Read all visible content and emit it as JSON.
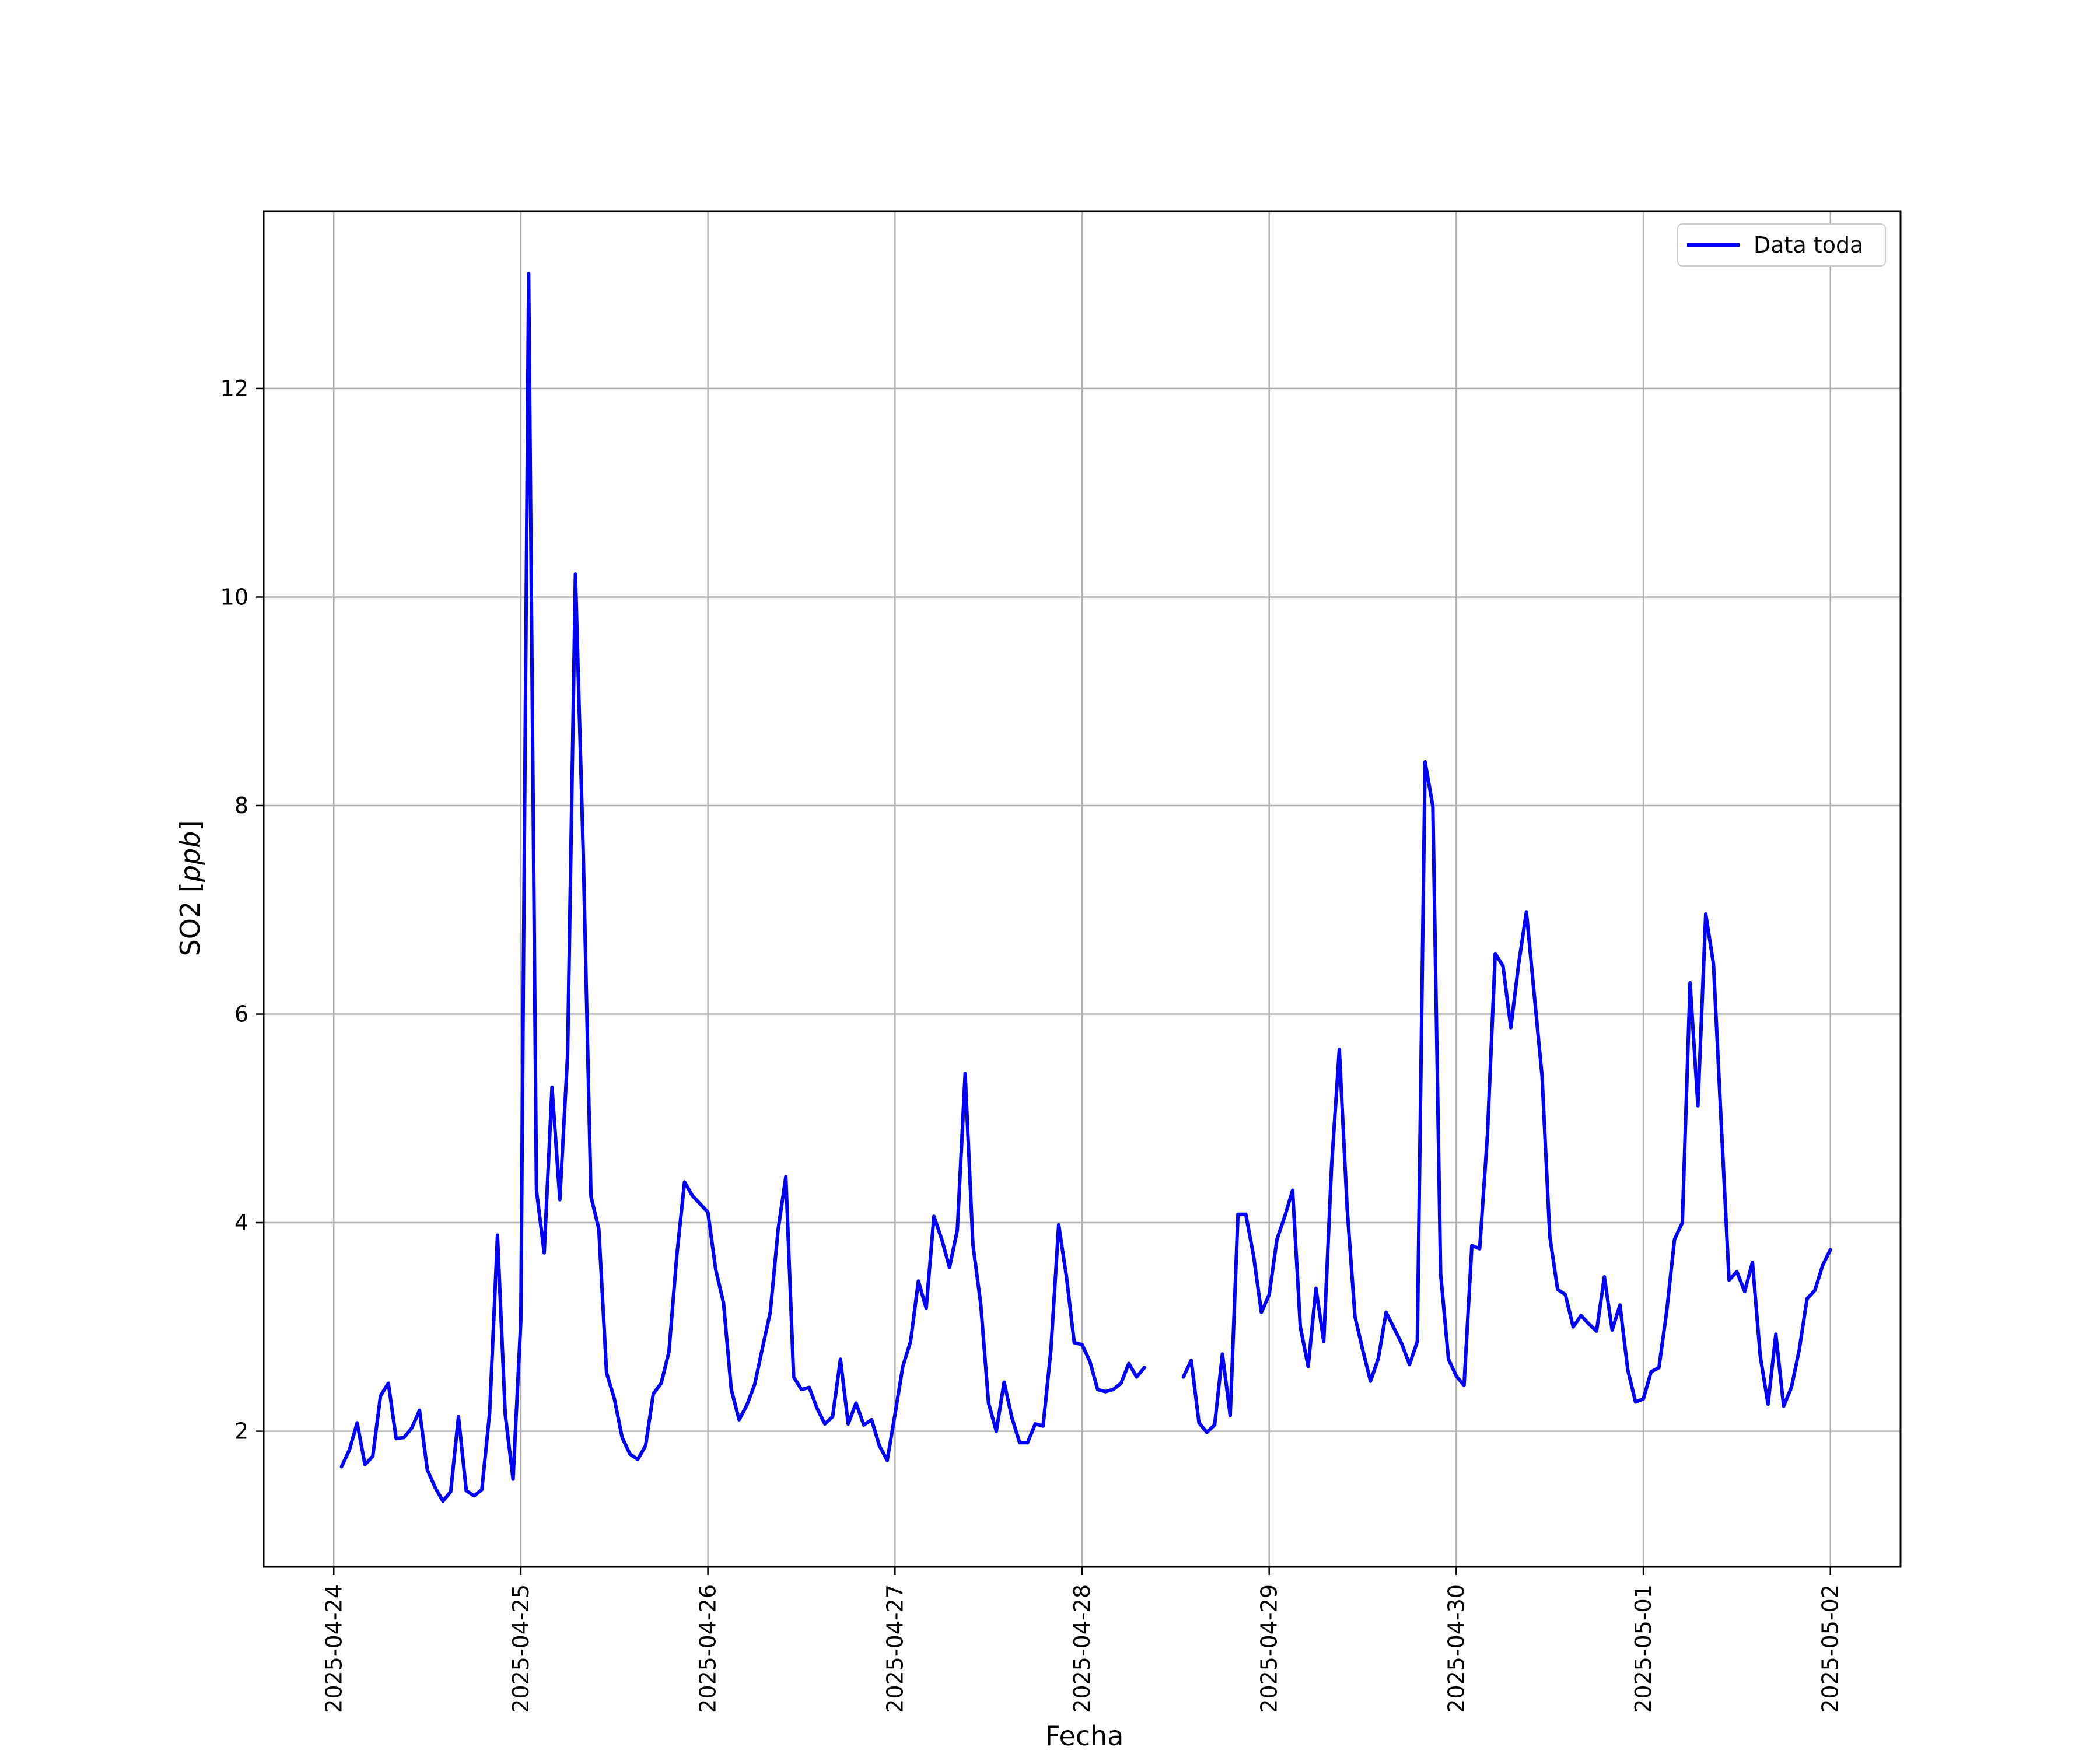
{
  "chart_data": {
    "type": "line",
    "xlabel": "Fecha",
    "ylabel_prefix": "SO2 [",
    "ylabel_unit": "ppb",
    "ylabel_suffix": "]",
    "ylim": [
      0.7,
      13.7
    ],
    "y_ticks": [
      2,
      4,
      6,
      8,
      10,
      12
    ],
    "x_ticks": [
      "2025-04-24",
      "2025-04-25",
      "2025-04-26",
      "2025-04-27",
      "2025-04-28",
      "2025-04-29",
      "2025-04-30",
      "2025-05-01",
      "2025-05-02"
    ],
    "xlim": [
      "2025-04-23T15:00",
      "2025-05-02T09:00"
    ],
    "grid": true,
    "legend_position": "upper right",
    "colors": {
      "series": "#0000ff",
      "grid": "#b0b0b0"
    },
    "series": [
      {
        "name": "Data toda",
        "x": [
          "2025-04-24T01:00",
          "2025-04-24T02:00",
          "2025-04-24T03:00",
          "2025-04-24T04:00",
          "2025-04-24T05:00",
          "2025-04-24T06:00",
          "2025-04-24T07:00",
          "2025-04-24T08:00",
          "2025-04-24T09:00",
          "2025-04-24T10:00",
          "2025-04-24T11:00",
          "2025-04-24T12:00",
          "2025-04-24T13:00",
          "2025-04-24T14:00",
          "2025-04-24T15:00",
          "2025-04-24T16:00",
          "2025-04-24T17:00",
          "2025-04-24T18:00",
          "2025-04-24T19:00",
          "2025-04-24T20:00",
          "2025-04-24T21:00",
          "2025-04-24T22:00",
          "2025-04-24T23:00",
          "2025-04-25T00:00",
          "2025-04-25T01:00",
          "2025-04-25T02:00",
          "2025-04-25T03:00",
          "2025-04-25T04:00",
          "2025-04-25T05:00",
          "2025-04-25T06:00",
          "2025-04-25T07:00",
          "2025-04-25T08:00",
          "2025-04-25T09:00",
          "2025-04-25T10:00",
          "2025-04-25T11:00",
          "2025-04-25T12:00",
          "2025-04-25T13:00",
          "2025-04-25T14:00",
          "2025-04-25T15:00",
          "2025-04-25T16:00",
          "2025-04-25T17:00",
          "2025-04-25T18:00",
          "2025-04-25T19:00",
          "2025-04-25T20:00",
          "2025-04-25T21:00",
          "2025-04-25T22:00",
          "2025-04-25T23:00",
          "2025-04-26T00:00",
          "2025-04-26T01:00",
          "2025-04-26T02:00",
          "2025-04-26T03:00",
          "2025-04-26T04:00",
          "2025-04-26T05:00",
          "2025-04-26T06:00",
          "2025-04-26T07:00",
          "2025-04-26T08:00",
          "2025-04-26T09:00",
          "2025-04-26T10:00",
          "2025-04-26T11:00",
          "2025-04-26T12:00",
          "2025-04-26T13:00",
          "2025-04-26T14:00",
          "2025-04-26T15:00",
          "2025-04-26T16:00",
          "2025-04-26T17:00",
          "2025-04-26T18:00",
          "2025-04-26T19:00",
          "2025-04-26T20:00",
          "2025-04-26T21:00",
          "2025-04-26T22:00",
          "2025-04-26T23:00",
          "2025-04-27T00:00",
          "2025-04-27T01:00",
          "2025-04-27T02:00",
          "2025-04-27T03:00",
          "2025-04-27T04:00",
          "2025-04-27T05:00",
          "2025-04-27T06:00",
          "2025-04-27T07:00",
          "2025-04-27T08:00",
          "2025-04-27T09:00",
          "2025-04-27T10:00",
          "2025-04-27T11:00",
          "2025-04-27T12:00",
          "2025-04-27T13:00",
          "2025-04-27T14:00",
          "2025-04-27T15:00",
          "2025-04-27T16:00",
          "2025-04-27T17:00",
          "2025-04-27T18:00",
          "2025-04-27T19:00",
          "2025-04-27T20:00",
          "2025-04-27T21:00",
          "2025-04-27T22:00",
          "2025-04-27T23:00",
          "2025-04-28T00:00",
          "2025-04-28T01:00",
          "2025-04-28T02:00",
          "2025-04-28T03:00",
          "2025-04-28T04:00",
          "2025-04-28T05:00",
          "2025-04-28T06:00",
          "2025-04-28T07:00",
          "2025-04-28T08:00",
          null,
          "2025-04-28T13:00",
          "2025-04-28T14:00",
          "2025-04-28T15:00",
          "2025-04-28T16:00",
          "2025-04-28T17:00",
          "2025-04-28T18:00",
          "2025-04-28T19:00",
          "2025-04-28T20:00",
          "2025-04-28T21:00",
          "2025-04-28T22:00",
          "2025-04-28T23:00",
          "2025-04-29T00:00",
          "2025-04-29T01:00",
          "2025-04-29T02:00",
          "2025-04-29T03:00",
          "2025-04-29T04:00",
          "2025-04-29T05:00",
          "2025-04-29T06:00",
          "2025-04-29T07:00",
          "2025-04-29T08:00",
          "2025-04-29T09:00",
          "2025-04-29T10:00",
          "2025-04-29T11:00",
          "2025-04-29T12:00",
          "2025-04-29T13:00",
          "2025-04-29T14:00",
          "2025-04-29T15:00",
          "2025-04-29T16:00",
          "2025-04-29T17:00",
          "2025-04-29T18:00",
          "2025-04-29T19:00",
          "2025-04-29T20:00",
          "2025-04-29T21:00",
          "2025-04-29T22:00",
          "2025-04-29T23:00",
          "2025-04-30T00:00",
          "2025-04-30T01:00",
          "2025-04-30T02:00",
          "2025-04-30T03:00",
          "2025-04-30T04:00",
          "2025-04-30T05:00",
          "2025-04-30T06:00",
          "2025-04-30T07:00",
          "2025-04-30T08:00",
          "2025-04-30T09:00",
          "2025-04-30T10:00",
          "2025-04-30T11:00",
          "2025-04-30T12:00",
          "2025-04-30T13:00",
          "2025-04-30T14:00",
          "2025-04-30T15:00",
          "2025-04-30T16:00",
          "2025-04-30T17:00",
          "2025-04-30T18:00",
          "2025-04-30T19:00",
          "2025-04-30T20:00",
          "2025-04-30T21:00",
          "2025-04-30T22:00",
          "2025-04-30T23:00",
          "2025-05-01T00:00",
          "2025-05-01T01:00",
          "2025-05-01T02:00",
          "2025-05-01T03:00",
          "2025-05-01T04:00",
          "2025-05-01T05:00",
          "2025-05-01T06:00",
          "2025-05-01T07:00",
          "2025-05-01T08:00",
          "2025-05-01T09:00",
          "2025-05-01T10:00",
          "2025-05-01T11:00",
          "2025-05-01T12:00",
          "2025-05-01T13:00",
          "2025-05-01T14:00",
          "2025-05-01T15:00",
          "2025-05-01T16:00",
          "2025-05-01T17:00",
          "2025-05-01T18:00",
          "2025-05-01T19:00",
          "2025-05-01T20:00",
          "2025-05-01T21:00",
          "2025-05-01T22:00",
          "2025-05-01T23:00",
          "2025-05-02T00:00"
        ],
        "values": [
          1.66,
          1.82,
          2.08,
          1.68,
          1.76,
          2.34,
          2.46,
          1.93,
          1.94,
          2.03,
          2.2,
          1.63,
          1.46,
          1.33,
          1.42,
          2.14,
          1.43,
          1.38,
          1.44,
          2.18,
          3.88,
          2.16,
          1.54,
          3.06,
          13.1,
          4.31,
          3.71,
          5.3,
          4.22,
          5.61,
          10.22,
          7.57,
          4.25,
          3.94,
          2.56,
          2.31,
          1.94,
          1.78,
          1.73,
          1.86,
          2.36,
          2.46,
          2.76,
          3.68,
          4.39,
          4.26,
          4.18,
          4.1,
          3.55,
          3.23,
          2.4,
          2.11,
          2.25,
          2.45,
          2.8,
          3.14,
          3.93,
          4.44,
          2.52,
          2.4,
          2.42,
          2.22,
          2.07,
          2.14,
          2.69,
          2.07,
          2.27,
          2.06,
          2.11,
          1.86,
          1.72,
          2.16,
          2.62,
          2.86,
          3.44,
          3.18,
          4.06,
          3.84,
          3.57,
          3.93,
          5.43,
          3.79,
          3.22,
          2.27,
          2.0,
          2.47,
          2.13,
          1.89,
          1.89,
          2.07,
          2.05,
          2.78,
          3.98,
          3.48,
          2.85,
          2.83,
          2.67,
          2.4,
          2.38,
          2.4,
          2.46,
          2.65,
          2.52,
          2.61,
          null,
          2.52,
          2.68,
          2.08,
          1.99,
          2.06,
          2.74,
          2.15,
          4.08,
          4.08,
          3.68,
          3.14,
          3.31,
          3.84,
          4.06,
          4.31,
          3.0,
          2.62,
          3.37,
          2.86,
          4.54,
          5.66,
          4.14,
          3.1,
          2.78,
          2.48,
          2.7,
          3.14,
          2.99,
          2.84,
          2.64,
          2.86,
          8.42,
          7.99,
          3.51,
          2.69,
          2.53,
          2.44,
          3.78,
          3.75,
          4.84,
          6.58,
          6.46,
          5.87,
          6.48,
          6.98,
          6.19,
          5.41,
          3.87,
          3.36,
          3.31,
          3.0,
          3.11,
          3.03,
          2.96,
          3.48,
          2.97,
          3.21,
          2.59,
          2.28,
          2.31,
          2.57,
          2.61,
          3.15,
          3.84,
          4.0,
          6.3,
          5.12,
          6.96,
          6.48,
          4.94,
          3.45,
          3.53,
          3.34,
          3.62,
          2.72,
          2.26,
          2.93,
          2.24,
          2.42,
          2.78,
          3.27,
          3.35,
          3.59,
          3.74
        ]
      }
    ]
  }
}
